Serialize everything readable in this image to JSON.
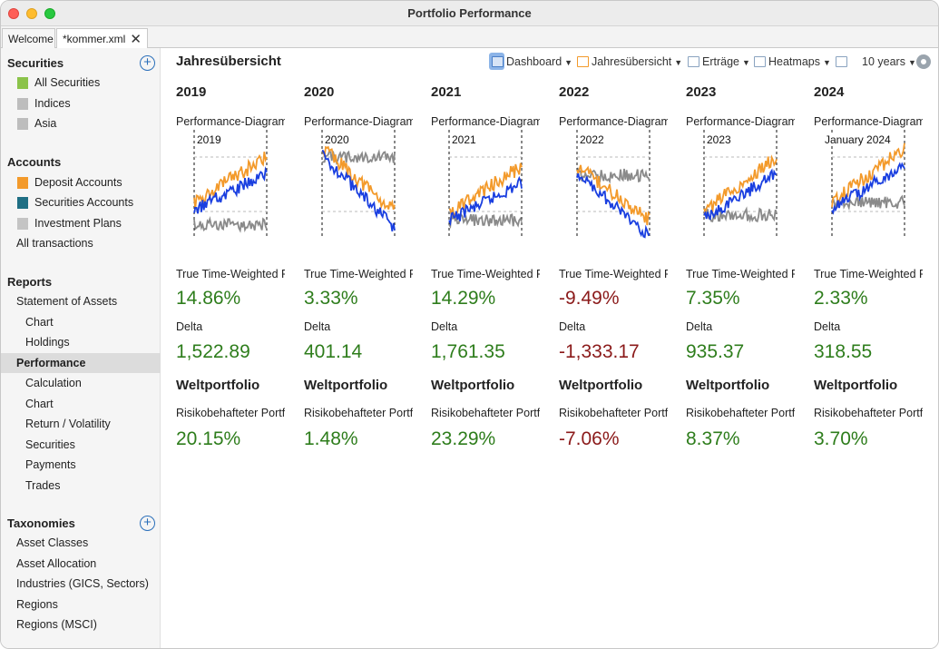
{
  "window": {
    "title": "Portfolio Performance"
  },
  "tabs": [
    {
      "label": "Welcome"
    },
    {
      "label": "*kommer.xml",
      "close": "✕"
    }
  ],
  "sidebar": {
    "securities": {
      "header": "Securities",
      "items": [
        "All Securities",
        "Indices",
        "Asia"
      ]
    },
    "accounts": {
      "header": "Accounts",
      "items": [
        "Deposit Accounts",
        "Securities Accounts",
        "Investment Plans",
        "All transactions"
      ]
    },
    "reports": {
      "header": "Reports",
      "items": [
        "Statement of Assets",
        "Chart",
        "Holdings",
        "Performance",
        "Calculation",
        "Chart",
        "Return / Volatility",
        "Securities",
        "Payments",
        "Trades"
      ]
    },
    "taxonomies": {
      "header": "Taxonomies",
      "items": [
        "Asset Classes",
        "Asset Allocation",
        "Industries (GICS, Sectors)",
        "Regions",
        "Regions (MSCI)"
      ]
    }
  },
  "main": {
    "title": "Jahresübersicht",
    "toolbar": {
      "dashboard": "Dashboard",
      "jahres": "Jahresübersicht",
      "ertraege": "Erträge",
      "heatmaps": "Heatmaps",
      "period": "10 years"
    },
    "row_labels": {
      "chart": "Performance-Diagramm",
      "ttwror": "True Time-Weighted Rate of Return",
      "delta": "Delta",
      "group": "Weltportfolio",
      "risky": "Risikobehafteter Portfolioanteil"
    },
    "columns": [
      {
        "year": "2019",
        "chart_label": "2019",
        "ttwror": "14.86%",
        "ttwror_sign": "pos",
        "delta": "1,522.89",
        "delta_sign": "pos",
        "risky": "20.15%",
        "risky_sign": "pos"
      },
      {
        "year": "2020",
        "chart_label": "2020",
        "ttwror": "3.33%",
        "ttwror_sign": "pos",
        "delta": "401.14",
        "delta_sign": "pos",
        "risky": "1.48%",
        "risky_sign": "pos"
      },
      {
        "year": "2021",
        "chart_label": "2021",
        "ttwror": "14.29%",
        "ttwror_sign": "pos",
        "delta": "1,761.35",
        "delta_sign": "pos",
        "risky": "23.29%",
        "risky_sign": "pos"
      },
      {
        "year": "2022",
        "chart_label": "2022",
        "ttwror": "-9.49%",
        "ttwror_sign": "neg",
        "delta": "-1,333.17",
        "delta_sign": "neg",
        "risky": "-7.06%",
        "risky_sign": "neg"
      },
      {
        "year": "2023",
        "chart_label": "2023",
        "ttwror": "7.35%",
        "ttwror_sign": "pos",
        "delta": "935.37",
        "delta_sign": "pos",
        "risky": "8.37%",
        "risky_sign": "pos"
      },
      {
        "year": "2024",
        "chart_label": "January 2024",
        "ttwror": "2.33%",
        "ttwror_sign": "pos",
        "delta": "318.55",
        "delta_sign": "pos",
        "risky": "3.70%",
        "risky_sign": "pos"
      }
    ]
  },
  "colors": {
    "positive": "#2e7d1c",
    "negative": "#8b1a1a",
    "series_orange": "#f39a2b",
    "series_blue": "#1a3fe0",
    "series_gray": "#8a8a8a"
  }
}
